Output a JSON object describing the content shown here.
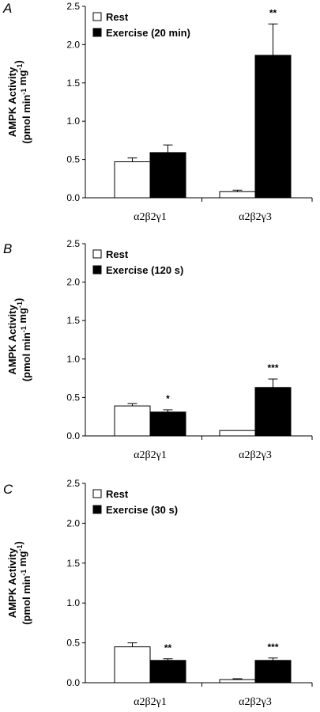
{
  "chart_data": [
    {
      "panel": "A",
      "type": "bar",
      "categories": [
        "α2β2γ1",
        "α2β2γ3"
      ],
      "ylabel_line1": "AMPK Activity",
      "ylabel_line2_main": "(pmol min",
      "ylabel_sup1": "-1",
      "ylabel_mid": " mg",
      "ylabel_sup2": "-1",
      "ylabel_end": ")",
      "ylim": [
        0,
        2.5
      ],
      "yticks": [
        "0.0",
        "0.5",
        "1.0",
        "1.5",
        "2.0",
        "2.5"
      ],
      "legend_position": "top-left",
      "series": [
        {
          "name": "Rest",
          "color": "#ffffff",
          "values": [
            0.47,
            0.08
          ],
          "errors": [
            0.05,
            0.02
          ],
          "sig": [
            "",
            ""
          ]
        },
        {
          "name": "Exercise (20 min)",
          "color": "#000000",
          "values": [
            0.59,
            1.86
          ],
          "errors": [
            0.1,
            0.41
          ],
          "sig": [
            "",
            "**"
          ]
        }
      ]
    },
    {
      "panel": "B",
      "type": "bar",
      "categories": [
        "α2β2γ1",
        "α2β2γ3"
      ],
      "ylabel_line1": "AMPK Activity",
      "ylabel_line2_main": "(pmol min",
      "ylabel_sup1": "-1",
      "ylabel_mid": " mg",
      "ylabel_sup2": "-1",
      "ylabel_end": ")",
      "ylim": [
        0,
        2.5
      ],
      "yticks": [
        "0.0",
        "0.5",
        "1.0",
        "1.5",
        "2.0",
        "2.5"
      ],
      "legend_position": "top-left",
      "series": [
        {
          "name": "Rest",
          "color": "#ffffff",
          "values": [
            0.39,
            0.07
          ],
          "errors": [
            0.03,
            0.0
          ],
          "sig": [
            "",
            ""
          ]
        },
        {
          "name": "Exercise (120 s)",
          "color": "#000000",
          "values": [
            0.31,
            0.63
          ],
          "errors": [
            0.03,
            0.11
          ],
          "sig": [
            "*",
            "***"
          ]
        }
      ]
    },
    {
      "panel": "C",
      "type": "bar",
      "categories": [
        "α2β2γ1",
        "α2β2γ3"
      ],
      "ylabel_line1": "AMPK Activity",
      "ylabel_line2_main": "(pmol min",
      "ylabel_sup1": "-1",
      "ylabel_mid": " mg",
      "ylabel_sup2": "-1",
      "ylabel_end": ")",
      "ylim": [
        0,
        2.5
      ],
      "yticks": [
        "0.0",
        "0.5",
        "1.0",
        "1.5",
        "2.0",
        "2.5"
      ],
      "legend_position": "top-left",
      "series": [
        {
          "name": "Rest",
          "color": "#ffffff",
          "values": [
            0.45,
            0.04
          ],
          "errors": [
            0.05,
            0.01
          ],
          "sig": [
            "",
            ""
          ]
        },
        {
          "name": "Exercise (30 s)",
          "color": "#000000",
          "values": [
            0.28,
            0.28
          ],
          "errors": [
            0.02,
            0.03
          ],
          "sig": [
            "**",
            "***"
          ]
        }
      ]
    }
  ]
}
